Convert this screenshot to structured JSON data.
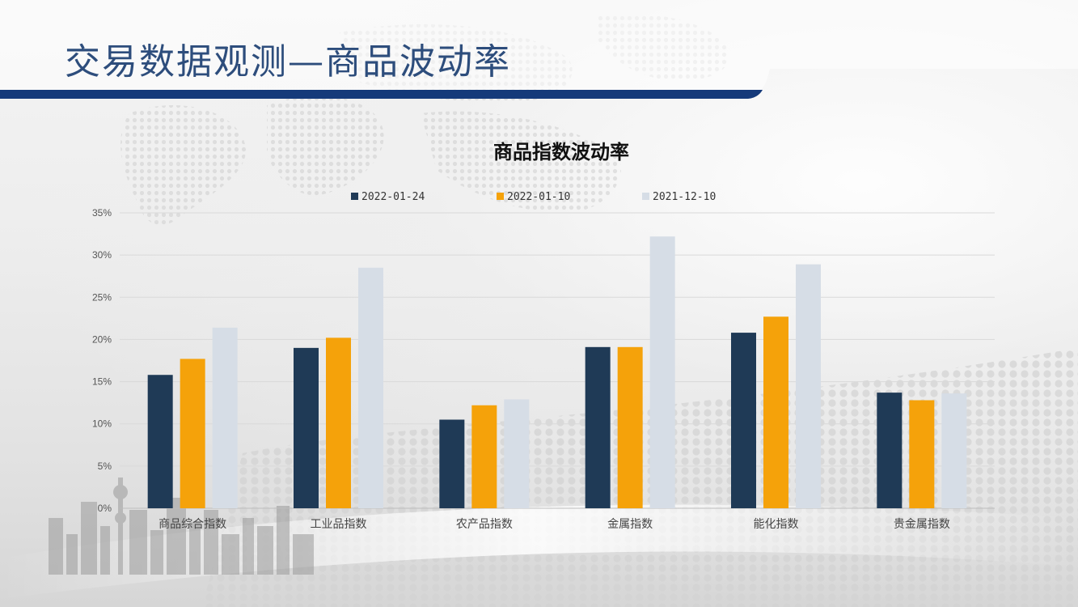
{
  "slide": {
    "title": "交易数据观测—商品波动率"
  },
  "colors": {
    "title": "#2d4d7c",
    "title_bar": "#153a7a",
    "series": [
      "#1f3a56",
      "#f5a20a",
      "#d6dde6"
    ]
  },
  "chart_data": {
    "type": "bar",
    "title": "商品指数波动率",
    "xlabel": "",
    "ylabel": "",
    "legend_position": "top",
    "grid": true,
    "y_tick_format": "percent",
    "ylim": [
      0,
      35
    ],
    "y_ticks": [
      "0%",
      "5%",
      "10%",
      "15%",
      "20%",
      "25%",
      "30%",
      "35%"
    ],
    "categories": [
      "商品综合指数",
      "工业品指数",
      "农产品指数",
      "金属指数",
      "能化指数",
      "贵金属指数"
    ],
    "series": [
      {
        "name": "2022-01-24",
        "values": [
          15.8,
          19.0,
          10.5,
          19.1,
          20.8,
          13.7
        ]
      },
      {
        "name": "2022-01-10",
        "values": [
          17.7,
          20.2,
          12.2,
          19.1,
          22.7,
          12.8
        ]
      },
      {
        "name": "2021-12-10",
        "values": [
          21.4,
          28.5,
          12.9,
          32.2,
          28.9,
          13.6
        ]
      }
    ]
  }
}
